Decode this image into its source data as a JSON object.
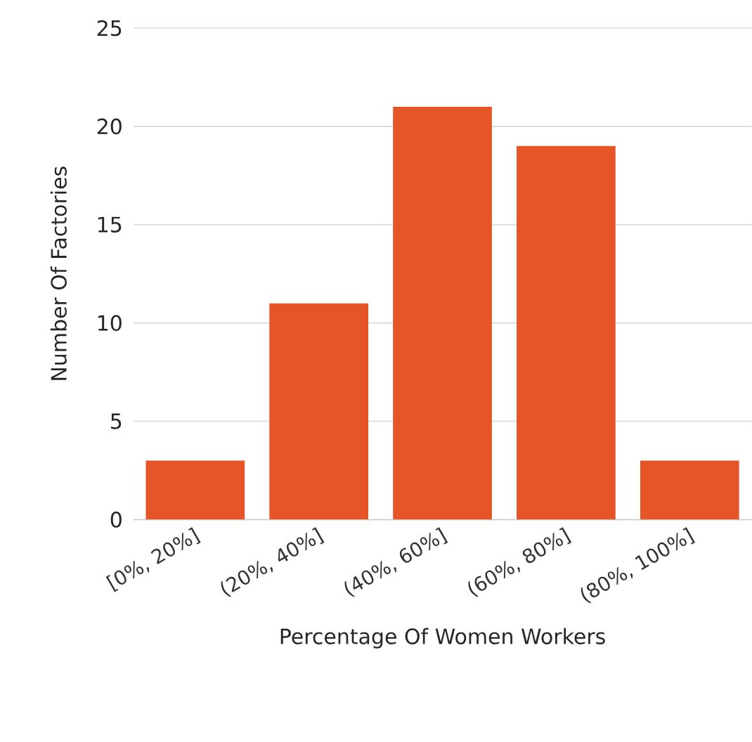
{
  "chart_data": {
    "type": "bar",
    "xlabel": "Percentage Of Women Workers",
    "ylabel": "Number Of Factories",
    "categories": [
      "[0%, 20%]",
      "(20%, 40%]",
      "(40%, 60%]",
      "(60%, 80%]",
      "(80%, 100%]"
    ],
    "values": [
      3,
      11,
      21,
      19,
      3
    ],
    "color": "#e55527",
    "ylim": [
      0,
      25
    ],
    "yticks": [
      0,
      5,
      10,
      15,
      20,
      25
    ],
    "grid": "y"
  }
}
